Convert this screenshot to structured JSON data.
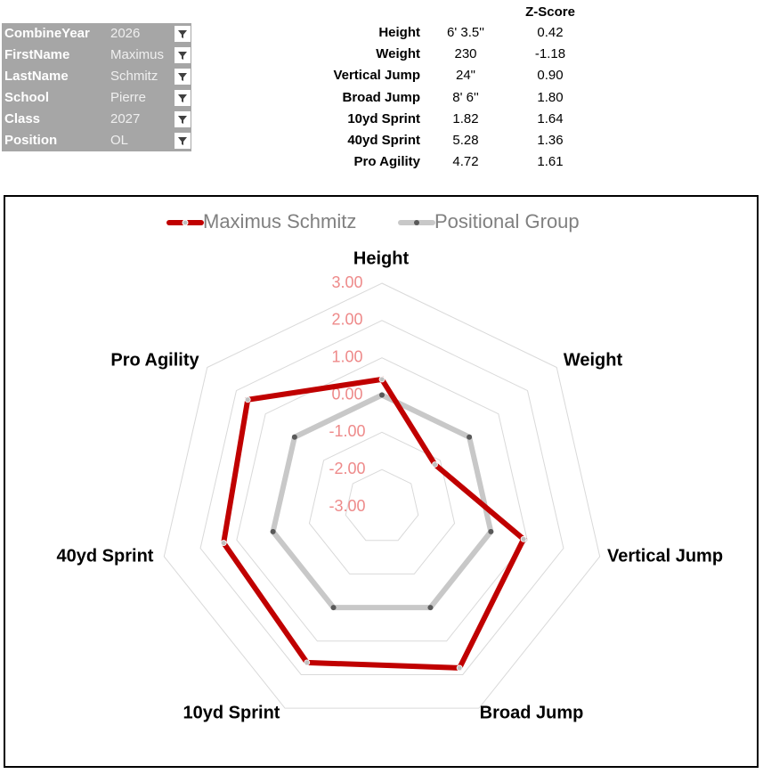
{
  "filters": [
    {
      "label": "CombineYear",
      "value": "2026"
    },
    {
      "label": "FirstName",
      "value": "Maximus"
    },
    {
      "label": "LastName",
      "value": "Schmitz"
    },
    {
      "label": "School",
      "value": "Pierre"
    },
    {
      "label": "Class",
      "value": "2027"
    },
    {
      "label": "Position",
      "value": "OL"
    }
  ],
  "table": {
    "score_header": "Z-Score",
    "rows": [
      [
        "Height",
        "6' 3.5''",
        "0.42"
      ],
      [
        "Weight",
        "230",
        "-1.18"
      ],
      [
        "Vertical Jump",
        "24\"",
        "0.90"
      ],
      [
        "Broad Jump",
        "8' 6''",
        "1.80"
      ],
      [
        "10yd Sprint",
        "1.82",
        "1.64"
      ],
      [
        "40yd Sprint",
        "5.28",
        "1.36"
      ],
      [
        "Pro Agility",
        "4.72",
        "1.61"
      ]
    ]
  },
  "chart_data": {
    "type": "radar",
    "categories": [
      "Height",
      "Weight",
      "Vertical Jump",
      "Broad Jump",
      "10yd Sprint",
      "40yd Sprint",
      "Pro Agility"
    ],
    "series": [
      {
        "name": "Maximus Schmitz",
        "color": "#c00000",
        "values": [
          0.42,
          -1.18,
          0.9,
          1.8,
          1.64,
          1.36,
          1.61
        ]
      },
      {
        "name": "Positional Group",
        "color": "#c8c8c8",
        "values": [
          0,
          0,
          0,
          0,
          0,
          0,
          0
        ]
      }
    ],
    "ylim": [
      -3,
      3
    ],
    "yticks": [
      {
        "value": -3,
        "label": "-3.00"
      },
      {
        "value": -2,
        "label": "-2.00"
      },
      {
        "value": -1,
        "label": "-1.00"
      },
      {
        "value": 0,
        "label": "0.00"
      },
      {
        "value": 1,
        "label": "1.00"
      },
      {
        "value": 2,
        "label": "2.00"
      },
      {
        "value": 3,
        "label": "3.00"
      }
    ],
    "grid": true,
    "legend": "top"
  }
}
